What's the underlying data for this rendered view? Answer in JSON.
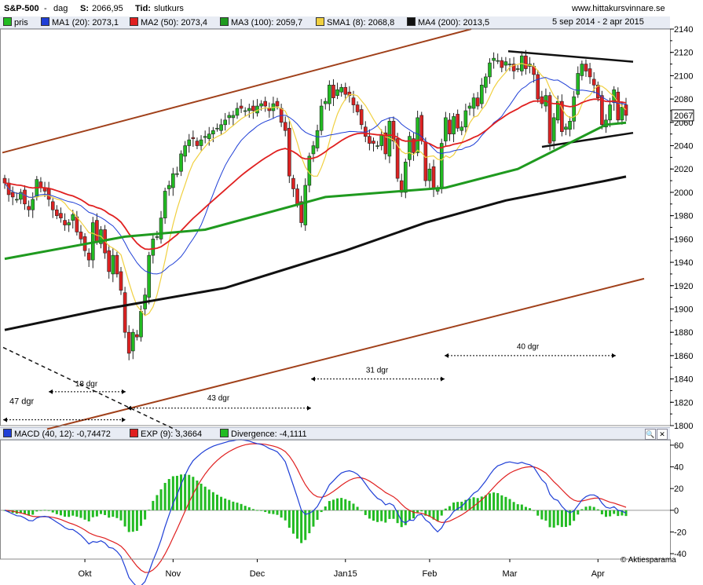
{
  "header": {
    "symbol": "S&P-500",
    "period": "dag",
    "close_label": "S:",
    "close_value": "2066,95",
    "time_label": "Tid:",
    "time_value": "slutkurs",
    "site": "www.hittakursvinnare.se",
    "date_range": "5 sep 2014 - 2 apr 2015"
  },
  "legend": [
    {
      "label": "pris",
      "value": "",
      "color": "#22bb22"
    },
    {
      "label": "MA1 (20):",
      "value": "2073,1",
      "color": "#1f3fd6"
    },
    {
      "label": "MA2 (50):",
      "value": "2073,4",
      "color": "#e02020"
    },
    {
      "label": "MA3 (100):",
      "value": "2059,7",
      "color": "#1f9a1f"
    },
    {
      "label": "SMA1 (8):",
      "value": "2068,8",
      "color": "#f0d040"
    },
    {
      "label": "MA4 (200):",
      "value": "2013,5",
      "color": "#111111"
    }
  ],
  "macd_legend": [
    {
      "label": "MACD (40, 12):",
      "value": "-0,74472",
      "color": "#1f3fd6"
    },
    {
      "label": "EXP (9):",
      "value": "3,3664",
      "color": "#e02020"
    },
    {
      "label": "Divergence:",
      "value": "-4,1111",
      "color": "#22bb22"
    }
  ],
  "price_tag": "2067",
  "watermark": "Aktiesparama",
  "annotations": [
    "47 dgr",
    "18 dgr",
    "43 dgr",
    "31 dgr",
    "40 dgr"
  ],
  "chart_data": [
    {
      "type": "candlestick",
      "title": "S&P-500",
      "ylim": [
        1800,
        2140
      ],
      "y_ticks": [
        1800,
        1820,
        1840,
        1860,
        1880,
        1900,
        1920,
        1940,
        1960,
        1980,
        2000,
        2020,
        2040,
        2060,
        2080,
        2100,
        2120,
        2140
      ],
      "x_tick_labels": [
        "Okt",
        "Nov",
        "Dec",
        "Jan15",
        "Feb",
        "Mar",
        "Apr"
      ],
      "close": [
        2008,
        1998,
        1996,
        1994,
        2000,
        1990,
        1985,
        1994,
        2011,
        2004,
        2001,
        1994,
        1985,
        1980,
        1978,
        1972,
        1974,
        1981,
        1966,
        1960,
        1950,
        1942,
        1974,
        1958,
        1968,
        1948,
        1932,
        1946,
        1930,
        1916,
        1880,
        1862,
        1880,
        1876,
        1898,
        1912,
        1946,
        1960,
        1962,
        1978,
        2001,
        2006,
        2016,
        2016,
        2033,
        2040,
        2045,
        2046,
        2040,
        2045,
        2048,
        2050,
        2053,
        2055,
        2058,
        2062,
        2066,
        2066,
        2072,
        2072,
        2070,
        2072,
        2070,
        2074,
        2076,
        2074,
        2070,
        2076,
        2074,
        2060,
        2053,
        2014,
        2003,
        1990,
        1974,
        2006,
        2031,
        2040,
        2053,
        2074,
        2078,
        2092,
        2081,
        2088,
        2090,
        2084,
        2083,
        2075,
        2069,
        2058,
        2048,
        2042,
        2042,
        2040,
        2049,
        2033,
        2061,
        2044,
        2012,
        2000,
        2026,
        2048,
        2034,
        2064,
        2045,
        2010,
        2020,
        2003,
        2003,
        2042,
        2064,
        2050,
        2065,
        2055,
        2056,
        2070,
        2074,
        2081,
        2074,
        2092,
        2099,
        2111,
        2115,
        2113,
        2107,
        2112,
        2110,
        2104,
        2106,
        2117,
        2106,
        2110,
        2101,
        2080,
        2076,
        2083,
        2042,
        2064,
        2078,
        2052,
        2056,
        2061,
        2082,
        2102,
        2110,
        2104,
        2099,
        2092,
        2081,
        2058,
        2062,
        2075,
        2088,
        2062,
        2073,
        2066
      ],
      "series": [
        {
          "name": "MA1 (20)",
          "color": "#1f3fd6",
          "last": 2073.1
        },
        {
          "name": "MA2 (50)",
          "color": "#e02020",
          "last": 2073.4
        },
        {
          "name": "MA3 (100)",
          "color": "#1f9a1f",
          "last": 2059.7
        },
        {
          "name": "SMA1 (8)",
          "color": "#f0d040",
          "last": 2068.8
        },
        {
          "name": "MA4 (200)",
          "color": "#111111",
          "last": 2013.5
        }
      ]
    },
    {
      "type": "bar+line",
      "title": "MACD",
      "ylim": [
        -45,
        65
      ],
      "y_ticks": [
        -40,
        -20,
        0,
        20,
        40,
        60
      ],
      "series": [
        {
          "name": "MACD (40, 12)",
          "color": "#1f3fd6",
          "last": -0.74472
        },
        {
          "name": "EXP (9)",
          "color": "#e02020",
          "last": 3.3664
        },
        {
          "name": "Divergence",
          "color": "#22bb22",
          "last": -4.1111
        }
      ]
    }
  ]
}
